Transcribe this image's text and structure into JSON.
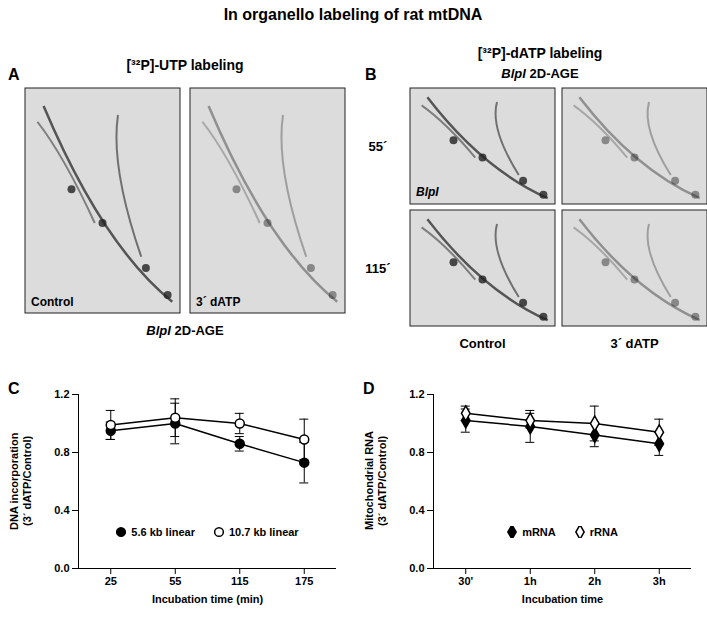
{
  "title": "In organello labeling of rat mtDNA",
  "panels": [
    {
      "label": "A",
      "title": "[³²P]-UTP labeling",
      "images": [
        "Control",
        "3´ dATP"
      ],
      "caption": "BlpI 2D-AGE"
    },
    {
      "label": "B",
      "title": "[³²P]-dATP labeling",
      "subtitle": "BlpI 2D-AGE",
      "rows": [
        "55´",
        "115´"
      ],
      "columns": [
        "Control",
        "3´ dATP"
      ],
      "inset_label": "BlpI"
    }
  ],
  "chart_data": [
    {
      "label": "C",
      "type": "line",
      "xlabel": "Incubation time (min)",
      "ylabel": "DNA incorporation\n(3´ dATP/Control)",
      "categories": [
        "25",
        "55",
        "115",
        "175"
      ],
      "ylim": [
        0,
        1.2
      ],
      "yticks": [
        {
          "value": 0,
          "label": "0.0"
        },
        0.4,
        0.8,
        1.2
      ],
      "legend": "bottom",
      "series": [
        {
          "name": "5.6 kb linear",
          "color": "#000000",
          "marker": "filled_circle",
          "values": [
            0.95,
            1.0,
            0.86,
            0.73
          ],
          "errors": [
            0.06,
            0.14,
            0.05,
            0.14
          ]
        },
        {
          "name": "10.7 kb linear",
          "color": "#000000",
          "marker": "open_circle",
          "values": [
            0.99,
            1.04,
            1.0,
            0.89
          ],
          "errors": [
            0.1,
            0.13,
            0.07,
            0.14
          ]
        }
      ]
    },
    {
      "label": "D",
      "type": "line",
      "xlabel": "Incubation time",
      "ylabel": "Mitochondrial RNA\n(3´ dATP/Control)",
      "categories": [
        "30'",
        "1h",
        "2h",
        "3h"
      ],
      "ylim": [
        0,
        1.2
      ],
      "yticks": [
        {
          "value": 0,
          "label": "0.0"
        },
        0.4,
        0.8,
        1.2
      ],
      "legend": "bottom",
      "series": [
        {
          "name": "mRNA",
          "color": "#000000",
          "marker": "filled_diamond",
          "values": [
            1.02,
            0.98,
            0.92,
            0.86
          ],
          "errors": [
            0.08,
            0.11,
            0.08,
            0.08
          ]
        },
        {
          "name": "rRNA",
          "color": "#000000",
          "marker": "open_diamond",
          "values": [
            1.07,
            1.02,
            1.0,
            0.94
          ],
          "errors": [
            0.05,
            0.05,
            0.12,
            0.09
          ]
        }
      ]
    }
  ]
}
